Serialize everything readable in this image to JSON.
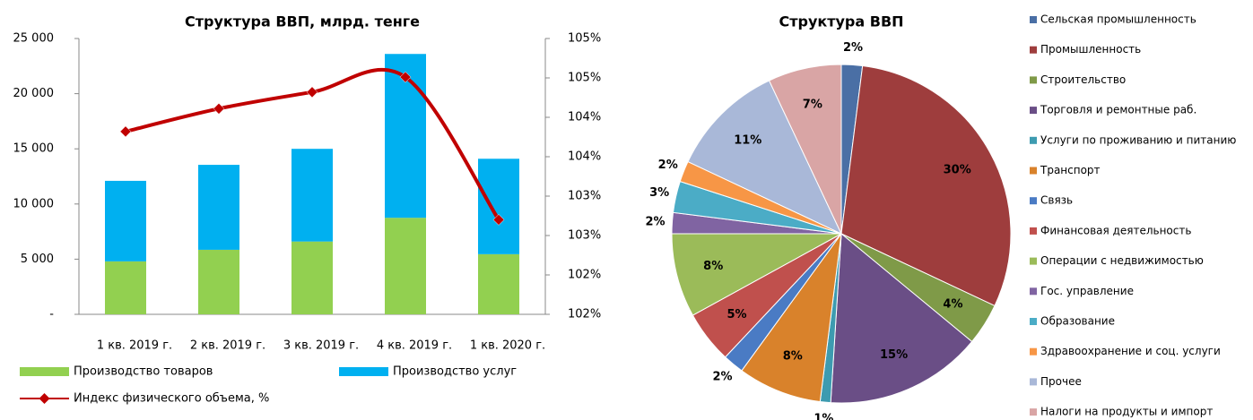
{
  "chart_data": [
    {
      "type": "bar",
      "stacked": true,
      "title": "Структура ВВП, млрд. тенге",
      "categories": [
        "1 кв. 2019 г.",
        "2 кв. 2019 г.",
        "3 кв. 2019 г.",
        "4 кв. 2019 г.",
        "1 кв. 2020 г."
      ],
      "series": [
        {
          "name": "Производство товаров",
          "color": "#92d050",
          "values": [
            4800,
            5850,
            6600,
            8750,
            5450
          ]
        },
        {
          "name": "Производство услуг",
          "color": "#00b0f0",
          "values": [
            7300,
            7700,
            8400,
            14850,
            8650
          ]
        },
        {
          "name": "Индекс физического объема, %",
          "color": "#c00000",
          "type": "line",
          "axis": "y2",
          "values": [
            103.82,
            104.11,
            104.32,
            104.51,
            102.7
          ]
        }
      ],
      "ylim": [
        0,
        25000
      ],
      "yticks": [
        {
          "value": 0,
          "label": "-"
        },
        {
          "value": 5000,
          "label": "5 000"
        },
        {
          "value": 10000,
          "label": "10 000"
        },
        {
          "value": 15000,
          "label": "15 000"
        },
        {
          "value": 20000,
          "label": "20 000"
        },
        {
          "value": 25000,
          "label": "25 000"
        }
      ],
      "y2lim": [
        101.5,
        105
      ],
      "y2ticks": [
        {
          "value": 101.5,
          "label": "102%"
        },
        {
          "value": 102,
          "label": "102%"
        },
        {
          "value": 102.5,
          "label": "103%"
        },
        {
          "value": 103,
          "label": "103%"
        },
        {
          "value": 103.5,
          "label": "104%"
        },
        {
          "value": 104,
          "label": "104%"
        },
        {
          "value": 104.5,
          "label": "105%"
        },
        {
          "value": 105,
          "label": "105%"
        }
      ],
      "legend": "bottom"
    },
    {
      "type": "pie",
      "title": "Структура ВВП",
      "categories": [
        "Сельская промышленность",
        "Промышленность",
        "Строительство",
        "Торговля и ремонтные раб.",
        "Услуги по проживанию и питанию",
        "Транспорт",
        "Связь",
        "Финансовая деятельность",
        "Операции с недвижимостью",
        "Гос. управление",
        "Образование",
        "Здравоохранение и соц. услуги",
        "Прочее",
        "Налоги на продукты и импорт"
      ],
      "values": [
        2,
        30,
        4,
        15,
        1,
        8,
        2,
        5,
        8,
        2,
        3,
        2,
        11,
        7
      ],
      "value_labels": [
        "2%",
        "30%",
        "4%",
        "15%",
        "1%",
        "8%",
        "2%",
        "5%",
        "8%",
        "2%",
        "3%",
        "2%",
        "11%",
        "7%"
      ],
      "colors": [
        "#4a6fa5",
        "#9e3d3d",
        "#7f9a48",
        "#6a4e86",
        "#3d9bb0",
        "#d9822b",
        "#4a7bc4",
        "#c0504d",
        "#9bbb59",
        "#8064a2",
        "#4bacc6",
        "#f79646",
        "#a9b8d8",
        "#d9a5a5"
      ],
      "legend": "right"
    }
  ]
}
